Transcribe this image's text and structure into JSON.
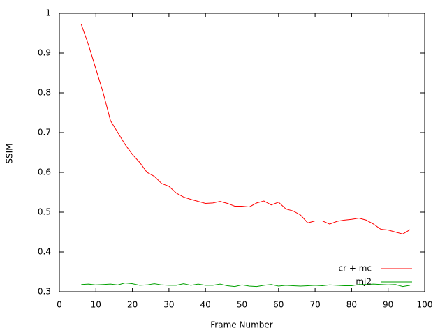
{
  "chart_data": {
    "type": "line",
    "x_label": "Frame Number",
    "y_label": "SSIM",
    "x": [
      6,
      8,
      10,
      12,
      14,
      16,
      18,
      20,
      22,
      24,
      26,
      28,
      30,
      32,
      34,
      36,
      38,
      40,
      42,
      44,
      46,
      48,
      50,
      52,
      54,
      56,
      58,
      60,
      62,
      64,
      66,
      68,
      70,
      72,
      74,
      76,
      78,
      80,
      82,
      84,
      86,
      88,
      90,
      92,
      94,
      96
    ],
    "series": [
      {
        "name": "cr + mc",
        "color": "#ff0000",
        "values": [
          0.972,
          0.92,
          0.86,
          0.8,
          0.73,
          0.7,
          0.67,
          0.645,
          0.625,
          0.6,
          0.59,
          0.572,
          0.565,
          0.548,
          0.538,
          0.532,
          0.527,
          0.522,
          0.523,
          0.527,
          0.522,
          0.515,
          0.515,
          0.513,
          0.523,
          0.528,
          0.518,
          0.525,
          0.508,
          0.503,
          0.493,
          0.473,
          0.478,
          0.478,
          0.47,
          0.477,
          0.48,
          0.482,
          0.485,
          0.48,
          0.47,
          0.457,
          0.455,
          0.45,
          0.445,
          0.456
        ]
      },
      {
        "name": "mj2",
        "color": "#00a000",
        "values": [
          0.318,
          0.319,
          0.317,
          0.318,
          0.319,
          0.317,
          0.322,
          0.32,
          0.316,
          0.317,
          0.32,
          0.317,
          0.316,
          0.316,
          0.32,
          0.316,
          0.319,
          0.316,
          0.316,
          0.319,
          0.315,
          0.313,
          0.317,
          0.314,
          0.313,
          0.316,
          0.318,
          0.314,
          0.316,
          0.315,
          0.314,
          0.315,
          0.316,
          0.315,
          0.317,
          0.316,
          0.315,
          0.315,
          0.318,
          0.318,
          0.319,
          0.318,
          0.317,
          0.318,
          0.313,
          0.316
        ]
      }
    ],
    "xlim": [
      0,
      100
    ],
    "xticks": [
      0,
      10,
      20,
      30,
      40,
      50,
      60,
      70,
      80,
      90,
      100
    ],
    "ylim": [
      0.3,
      1
    ],
    "yticks": [
      0.3,
      0.4,
      0.5,
      0.6,
      0.7,
      0.8,
      0.9,
      1
    ],
    "legend": "bottom-right"
  }
}
